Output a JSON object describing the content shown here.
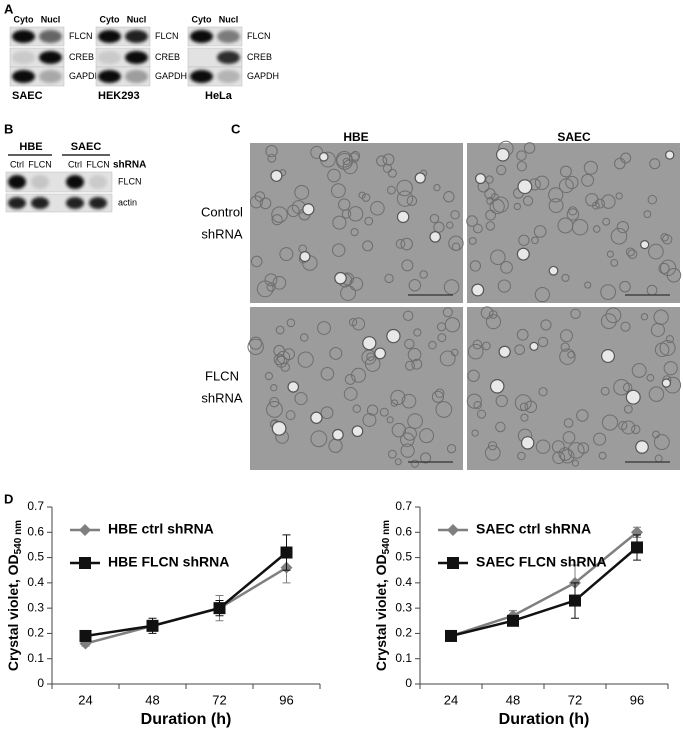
{
  "panel_labels": [
    "A",
    "B",
    "C",
    "D"
  ],
  "panel_a": {
    "groups": [
      {
        "cell_line": "SAEC",
        "columns": [
          "Cyto",
          "Nucl"
        ],
        "proteins": [
          "FLCN",
          "CREB",
          "GAPDH"
        ]
      },
      {
        "cell_line": "HEK293",
        "columns": [
          "Cyto",
          "Nucl"
        ],
        "proteins": [
          "FLCN",
          "CREB",
          "GAPDH"
        ]
      },
      {
        "cell_line": "HeLa",
        "columns": [
          "Cyto",
          "Nucl"
        ],
        "proteins": [
          "FLCN",
          "CREB",
          "GAPDH"
        ]
      }
    ]
  },
  "panel_b": {
    "cell_lines": [
      "HBE",
      "SAEC"
    ],
    "lanes": [
      "Ctrl",
      "FLCN",
      "Ctrl",
      "FLCN"
    ],
    "lane_title": "shRNA",
    "proteins": [
      "FLCN",
      "actin"
    ]
  },
  "panel_c": {
    "columns": [
      "HBE",
      "SAEC"
    ],
    "rows": [
      [
        "Control",
        "shRNA"
      ],
      [
        "FLCN",
        "shRNA"
      ]
    ]
  },
  "chart_data": [
    {
      "type": "line",
      "categories": [
        "24",
        "48",
        "72",
        "96"
      ],
      "x_label": "Duration (h)",
      "y_label": "Crystal violet, OD",
      "y_label_sub": "540 nm",
      "ylim": [
        0,
        0.7
      ],
      "yticks": [
        0,
        0.1,
        0.2,
        0.3,
        0.4,
        0.5,
        0.6,
        0.7
      ],
      "series": [
        {
          "name": "HBE ctrl shRNA",
          "color": "#7f7f7f",
          "marker": "diamond",
          "values": [
            0.16,
            0.23,
            0.3,
            0.46
          ],
          "errors": [
            0.01,
            0.02,
            0.05,
            0.06
          ]
        },
        {
          "name": "HBE FLCN shRNA",
          "color": "#111111",
          "marker": "square",
          "values": [
            0.19,
            0.23,
            0.3,
            0.52
          ],
          "errors": [
            0.01,
            0.03,
            0.03,
            0.07
          ]
        }
      ]
    },
    {
      "type": "line",
      "categories": [
        "24",
        "48",
        "72",
        "96"
      ],
      "x_label": "Duration (h)",
      "y_label": "Crystal violet, OD",
      "y_label_sub": "540 nm",
      "ylim": [
        0,
        0.7
      ],
      "yticks": [
        0,
        0.1,
        0.2,
        0.3,
        0.4,
        0.5,
        0.6,
        0.7
      ],
      "series": [
        {
          "name": "SAEC ctrl shRNA",
          "color": "#7f7f7f",
          "marker": "diamond",
          "values": [
            0.19,
            0.27,
            0.4,
            0.6
          ],
          "errors": [
            0.01,
            0.02,
            0.07,
            0.02
          ]
        },
        {
          "name": "SAEC FLCN shRNA",
          "color": "#111111",
          "marker": "square",
          "values": [
            0.19,
            0.25,
            0.33,
            0.54
          ],
          "errors": [
            0.01,
            0.02,
            0.07,
            0.05
          ]
        }
      ]
    }
  ]
}
